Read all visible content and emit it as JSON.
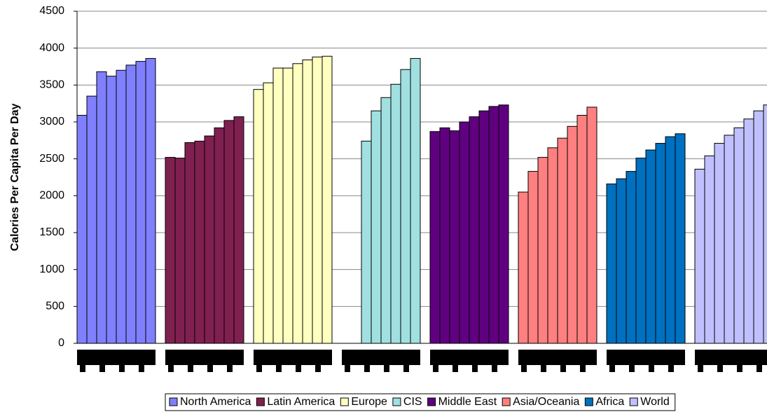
{
  "chart_data": {
    "type": "grouped-bar",
    "y_label": "Calories Per Capita Per Day",
    "categories": [
      null,
      null,
      null,
      null,
      null,
      null,
      null,
      null
    ],
    "series": [
      {
        "name": "North America",
        "color": "#8080ff",
        "values": [
          3090,
          3350,
          3680,
          3620,
          3700,
          3770,
          3820,
          3860
        ]
      },
      {
        "name": "Latin America",
        "color": "#802050",
        "values": [
          2520,
          2510,
          2720,
          2740,
          2810,
          2920,
          3020,
          3070
        ]
      },
      {
        "name": "Europe",
        "color": "#ffffc0",
        "values": [
          3440,
          3530,
          3730,
          3730,
          3790,
          3840,
          3880,
          3890
        ]
      },
      {
        "name": "CIS",
        "color": "#a0e0e0",
        "values": [
          null,
          null,
          2740,
          3150,
          3330,
          3510,
          3710,
          3860
        ]
      },
      {
        "name": "Middle East",
        "color": "#600080",
        "values": [
          2870,
          2920,
          2880,
          3000,
          3070,
          3150,
          3210,
          3230
        ]
      },
      {
        "name": "Asia/Oceania",
        "color": "#ff8080",
        "values": [
          2050,
          2330,
          2520,
          2650,
          2780,
          2940,
          3090,
          3200
        ]
      },
      {
        "name": "Africa",
        "color": "#0070c0",
        "values": [
          2160,
          2230,
          2330,
          2510,
          2620,
          2710,
          2800,
          2840
        ]
      },
      {
        "name": "World",
        "color": "#c0c0ff",
        "values": [
          2360,
          2540,
          2710,
          2820,
          2920,
          3040,
          3150,
          3230
        ]
      }
    ],
    "ylim": [
      0,
      4500
    ],
    "yticks": [
      0,
      500,
      1000,
      1500,
      2000,
      2500,
      3000,
      3500,
      4000,
      4500
    ],
    "grid": true,
    "legend": "bottom"
  }
}
